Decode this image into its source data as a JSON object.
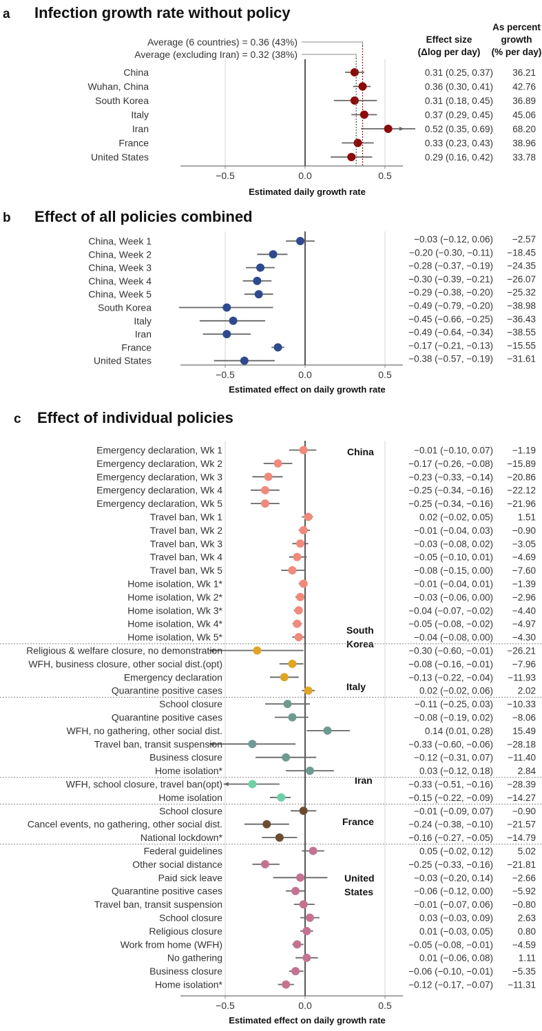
{
  "panel_a": {
    "letter": "a",
    "title": "Infection growth rate without policy",
    "header_effect_1": "Effect size",
    "header_effect_2": "(Δlog per day)",
    "header_pct_1": "As percent",
    "header_pct_2": "growth",
    "header_pct_3": "(% per day)",
    "avg_all": "Average (6 countries) = 0.36 (43%)",
    "avg_excl": "Average (excluding Iran) = 0.32 (38%)",
    "xlabel": "Estimated daily growth rate",
    "ticks": [
      "−0.5",
      "0.0",
      "0.5"
    ]
  },
  "panel_b": {
    "letter": "b",
    "title": "Effect of all policies combined",
    "xlabel": "Estimated effect on daily growth rate",
    "ticks": [
      "−0.5",
      "0.0",
      "0.5"
    ]
  },
  "panel_c": {
    "letter": "c",
    "title": "Effect of individual policies",
    "xlabel": "Estimated effect on daily growth rate",
    "ticks": [
      "−0.5",
      "0.0",
      "0.5"
    ],
    "groups": [
      "China",
      "South",
      "Korea",
      "Italy",
      "Iran",
      "France",
      "United",
      "States"
    ]
  },
  "chart_data": [
    {
      "type": "scatter",
      "title": "Infection growth rate without policy",
      "xlabel": "Estimated daily growth rate",
      "xlim": [
        -0.8,
        0.6
      ],
      "color": "#8b0a0a",
      "averages": [
        0.36,
        0.32
      ],
      "rows": [
        {
          "label": "China",
          "est": 0.31,
          "lo": 0.25,
          "hi": 0.37,
          "ci": "0.31 (0.25, 0.37)",
          "pct": "36.21"
        },
        {
          "label": "Wuhan, China",
          "est": 0.36,
          "lo": 0.3,
          "hi": 0.41,
          "ci": "0.36 (0.30, 0.41)",
          "pct": "42.76"
        },
        {
          "label": "South Korea",
          "est": 0.31,
          "lo": 0.18,
          "hi": 0.45,
          "ci": "0.31 (0.18, 0.45)",
          "pct": "36.89"
        },
        {
          "label": "Italy",
          "est": 0.37,
          "lo": 0.29,
          "hi": 0.45,
          "ci": "0.37 (0.29, 0.45)",
          "pct": "45.06"
        },
        {
          "label": "Iran",
          "est": 0.52,
          "lo": 0.35,
          "hi": 0.69,
          "ci": "0.52 (0.35, 0.69)",
          "pct": "68.20"
        },
        {
          "label": "France",
          "est": 0.33,
          "lo": 0.23,
          "hi": 0.43,
          "ci": "0.33 (0.23, 0.43)",
          "pct": "38.96"
        },
        {
          "label": "United States",
          "est": 0.29,
          "lo": 0.16,
          "hi": 0.42,
          "ci": "0.29 (0.16, 0.42)",
          "pct": "33.78"
        }
      ]
    },
    {
      "type": "scatter",
      "title": "Effect of all policies combined",
      "xlabel": "Estimated effect on daily growth rate",
      "xlim": [
        -0.8,
        0.6
      ],
      "color": "#2e4a8f",
      "rows": [
        {
          "label": "China, Week 1",
          "est": -0.03,
          "lo": -0.12,
          "hi": 0.06,
          "ci": "−0.03 (−0.12, 0.06)",
          "pct": "−2.57"
        },
        {
          "label": "China, Week 2",
          "est": -0.2,
          "lo": -0.3,
          "hi": -0.11,
          "ci": "−0.20 (−0.30, −0.11)",
          "pct": "−18.45"
        },
        {
          "label": "China, Week 3",
          "est": -0.28,
          "lo": -0.37,
          "hi": -0.19,
          "ci": "−0.28 (−0.37, −0.19)",
          "pct": "−24.35"
        },
        {
          "label": "China, Week 4",
          "est": -0.3,
          "lo": -0.39,
          "hi": -0.21,
          "ci": "−0.30 (−0.39, −0.21)",
          "pct": "−26.07"
        },
        {
          "label": "China, Week 5",
          "est": -0.29,
          "lo": -0.38,
          "hi": -0.2,
          "ci": "−0.29 (−0.38, −0.20)",
          "pct": "−25.32"
        },
        {
          "label": "South Korea",
          "est": -0.49,
          "lo": -0.79,
          "hi": -0.2,
          "ci": "−0.49 (−0.79, −0.20)",
          "pct": "−38.98"
        },
        {
          "label": "Italy",
          "est": -0.45,
          "lo": -0.66,
          "hi": -0.25,
          "ci": "−0.45 (−0.66, −0.25)",
          "pct": "−36.43"
        },
        {
          "label": "Iran",
          "est": -0.49,
          "lo": -0.64,
          "hi": -0.34,
          "ci": "−0.49 (−0.64, −0.34)",
          "pct": "−38.55"
        },
        {
          "label": "France",
          "est": -0.17,
          "lo": -0.21,
          "hi": -0.13,
          "ci": "−0.17 (−0.21, −0.13)",
          "pct": "−15.55"
        },
        {
          "label": "United States",
          "est": -0.38,
          "lo": -0.57,
          "hi": -0.19,
          "ci": "−0.38 (−0.57, −0.19)",
          "pct": "−31.61"
        }
      ]
    },
    {
      "type": "scatter",
      "title": "Effect of individual policies",
      "xlabel": "Estimated effect on daily growth rate",
      "xlim": [
        -0.8,
        0.6
      ],
      "rows": [
        {
          "label": "Emergency declaration, Wk 1",
          "est": -0.01,
          "lo": -0.1,
          "hi": 0.07,
          "ci": "−0.01 (−0.10, 0.07)",
          "pct": "−1.19",
          "color": "#f08a7a"
        },
        {
          "label": "Emergency declaration, Wk 2",
          "est": -0.17,
          "lo": -0.26,
          "hi": -0.08,
          "ci": "−0.17 (−0.26, −0.08)",
          "pct": "−15.89",
          "color": "#f08a7a"
        },
        {
          "label": "Emergency declaration, Wk 3",
          "est": -0.23,
          "lo": -0.33,
          "hi": -0.14,
          "ci": "−0.23 (−0.33, −0.14)",
          "pct": "−20.86",
          "color": "#f08a7a"
        },
        {
          "label": "Emergency declaration, Wk 4",
          "est": -0.25,
          "lo": -0.34,
          "hi": -0.16,
          "ci": "−0.25 (−0.34, −0.16)",
          "pct": "−22.12",
          "color": "#f08a7a"
        },
        {
          "label": "Emergency declaration, Wk 5",
          "est": -0.25,
          "lo": -0.34,
          "hi": -0.16,
          "ci": "−0.25 (−0.34, −0.16)",
          "pct": "−21.96",
          "color": "#f08a7a"
        },
        {
          "label": "Travel ban, Wk 1",
          "est": 0.02,
          "lo": -0.02,
          "hi": 0.05,
          "ci": "0.02 (−0.02, 0.05)",
          "pct": "1.51",
          "color": "#f08a7a"
        },
        {
          "label": "Travel ban, Wk 2",
          "est": -0.01,
          "lo": -0.04,
          "hi": 0.03,
          "ci": "−0.01 (−0.04, 0.03)",
          "pct": "−0.90",
          "color": "#f08a7a"
        },
        {
          "label": "Travel ban, Wk 3",
          "est": -0.03,
          "lo": -0.08,
          "hi": 0.02,
          "ci": "−0.03 (−0.08, 0.02)",
          "pct": "−3.05",
          "color": "#f08a7a"
        },
        {
          "label": "Travel ban, Wk 4",
          "est": -0.05,
          "lo": -0.1,
          "hi": 0.01,
          "ci": "−0.05 (−0.10, 0.01)",
          "pct": "−4.69",
          "color": "#f08a7a"
        },
        {
          "label": "Travel ban, Wk 5",
          "est": -0.08,
          "lo": -0.15,
          "hi": 0.0,
          "ci": "−0.08 (−0.15, 0.00)",
          "pct": "−7.60",
          "color": "#f08a7a"
        },
        {
          "label": "Home isolation, Wk 1*",
          "est": -0.01,
          "lo": -0.04,
          "hi": 0.01,
          "ci": "−0.01 (−0.04, 0.01)",
          "pct": "−1.39",
          "color": "#f08a7a"
        },
        {
          "label": "Home isolation, Wk 2*",
          "est": -0.03,
          "lo": -0.06,
          "hi": 0.0,
          "ci": "−0.03 (−0.06, 0.00)",
          "pct": "−2.96",
          "color": "#f08a7a"
        },
        {
          "label": "Home isolation, Wk 3*",
          "est": -0.04,
          "lo": -0.07,
          "hi": -0.02,
          "ci": "−0.04 (−0.07, −0.02)",
          "pct": "−4.40",
          "color": "#f08a7a"
        },
        {
          "label": "Home isolation, Wk 4*",
          "est": -0.05,
          "lo": -0.08,
          "hi": -0.02,
          "ci": "−0.05 (−0.08, −0.02)",
          "pct": "−4.97",
          "color": "#f08a7a"
        },
        {
          "label": "Home isolation, Wk 5*",
          "est": -0.04,
          "lo": -0.08,
          "hi": 0.0,
          "ci": "−0.04 (−0.08, 0.00)",
          "pct": "−4.30",
          "color": "#f08a7a"
        },
        {
          "label": "Religious & welfare closure, no demonstration",
          "est": -0.3,
          "lo": -0.6,
          "hi": -0.01,
          "ci": "−0.30 (−0.60, −0.01)",
          "pct": "−26.21",
          "color": "#e0a526",
          "arrow": "left"
        },
        {
          "label": "WFH, business closure, other social dist.(opt)",
          "est": -0.08,
          "lo": -0.16,
          "hi": -0.01,
          "ci": "−0.08 (−0.16, −0.01)",
          "pct": "−7.96",
          "color": "#e0a526"
        },
        {
          "label": "Emergency declaration",
          "est": -0.13,
          "lo": -0.22,
          "hi": -0.04,
          "ci": "−0.13 (−0.22, −0.04)",
          "pct": "−11.93",
          "color": "#e0a526"
        },
        {
          "label": "Quarantine positive cases",
          "est": 0.02,
          "lo": -0.02,
          "hi": 0.06,
          "ci": "0.02 (−0.02, 0.06)",
          "pct": "2.02",
          "color": "#e0a526"
        },
        {
          "label": "School closure",
          "est": -0.11,
          "lo": -0.25,
          "hi": 0.03,
          "ci": "−0.11 (−0.25, 0.03)",
          "pct": "−10.33",
          "color": "#6e9a92"
        },
        {
          "label": "Quarantine positive cases",
          "est": -0.08,
          "lo": -0.19,
          "hi": 0.02,
          "ci": "−0.08 (−0.19, 0.02)",
          "pct": "−8.06",
          "color": "#6e9a92"
        },
        {
          "label": "WFH, no gathering, other social dist.",
          "est": 0.14,
          "lo": 0.01,
          "hi": 0.28,
          "ci": "0.14 (0.01, 0.28)",
          "pct": "15.49",
          "color": "#6e9a92"
        },
        {
          "label": "Travel ban, transit suspension",
          "est": -0.33,
          "lo": -0.6,
          "hi": -0.06,
          "ci": "−0.33 (−0.60, −0.06)",
          "pct": "−28.18",
          "color": "#6e9a92",
          "arrow": "left"
        },
        {
          "label": "Business closure",
          "est": -0.12,
          "lo": -0.31,
          "hi": 0.07,
          "ci": "−0.12 (−0.31, 0.07)",
          "pct": "−11.40",
          "color": "#6e9a92"
        },
        {
          "label": "Home isolation*",
          "est": 0.03,
          "lo": -0.12,
          "hi": 0.18,
          "ci": "0.03 (−0.12, 0.18)",
          "pct": "2.84",
          "color": "#6e9a92"
        },
        {
          "label": "WFH, school closure, travel ban(opt)",
          "est": -0.33,
          "lo": -0.51,
          "hi": -0.16,
          "ci": "−0.33 (−0.51, −0.16)",
          "pct": "−28.39",
          "color": "#6fcfa8",
          "arrow": "left"
        },
        {
          "label": "Home isolation",
          "est": -0.15,
          "lo": -0.22,
          "hi": -0.09,
          "ci": "−0.15 (−0.22, −0.09)",
          "pct": "−14.27",
          "color": "#6fcfa8"
        },
        {
          "label": "School closure",
          "est": -0.01,
          "lo": -0.09,
          "hi": 0.07,
          "ci": "−0.01 (−0.09, 0.07)",
          "pct": "−0.90",
          "color": "#6b4d33"
        },
        {
          "label": "Cancel events, no gathering, other social dist.",
          "est": -0.24,
          "lo": -0.38,
          "hi": -0.1,
          "ci": "−0.24 (−0.38, −0.10)",
          "pct": "−21.57",
          "color": "#6b4d33"
        },
        {
          "label": "National lockdown*",
          "est": -0.16,
          "lo": -0.27,
          "hi": -0.05,
          "ci": "−0.16 (−0.27, −0.05)",
          "pct": "−14.79",
          "color": "#6b4d33"
        },
        {
          "label": "Federal guidelines",
          "est": 0.05,
          "lo": -0.02,
          "hi": 0.12,
          "ci": "0.05 (−0.02, 0.12)",
          "pct": "5.02",
          "color": "#c57292"
        },
        {
          "label": "Other social distance",
          "est": -0.25,
          "lo": -0.33,
          "hi": -0.16,
          "ci": "−0.25 (−0.33, −0.16)",
          "pct": "−21.81",
          "color": "#c57292"
        },
        {
          "label": "Paid sick leave",
          "est": -0.03,
          "lo": -0.2,
          "hi": 0.14,
          "ci": "−0.03 (−0.20, 0.14)",
          "pct": "−2.66",
          "color": "#c57292"
        },
        {
          "label": "Quarantine positive cases",
          "est": -0.06,
          "lo": -0.12,
          "hi": 0.0,
          "ci": "−0.06 (−0.12, 0.00)",
          "pct": "−5.92",
          "color": "#c57292"
        },
        {
          "label": "Travel ban, transit suspension",
          "est": -0.01,
          "lo": -0.07,
          "hi": 0.06,
          "ci": "−0.01 (−0.07, 0.06)",
          "pct": "−0.80",
          "color": "#c57292"
        },
        {
          "label": "School closure",
          "est": 0.03,
          "lo": -0.03,
          "hi": 0.09,
          "ci": "0.03 (−0.03, 0.09)",
          "pct": "2.63",
          "color": "#c57292"
        },
        {
          "label": "Religious closure",
          "est": 0.01,
          "lo": -0.03,
          "hi": 0.05,
          "ci": "0.01 (−0.03, 0.05)",
          "pct": "0.80",
          "color": "#c57292"
        },
        {
          "label": "Work from home (WFH)",
          "est": -0.05,
          "lo": -0.08,
          "hi": -0.01,
          "ci": "−0.05 (−0.08, −0.01)",
          "pct": "−4.59",
          "color": "#c57292"
        },
        {
          "label": "No gathering",
          "est": 0.01,
          "lo": -0.06,
          "hi": 0.08,
          "ci": "0.01 (−0.06, 0.08)",
          "pct": "1.11",
          "color": "#c57292"
        },
        {
          "label": "Business closure",
          "est": -0.06,
          "lo": -0.1,
          "hi": -0.01,
          "ci": "−0.06 (−0.10, −0.01)",
          "pct": "−5.35",
          "color": "#c57292"
        },
        {
          "label": "Home isolation*",
          "est": -0.12,
          "lo": -0.17,
          "hi": -0.07,
          "ci": "−0.12 (−0.17, −0.07)",
          "pct": "−11.31",
          "color": "#c57292"
        }
      ]
    }
  ]
}
